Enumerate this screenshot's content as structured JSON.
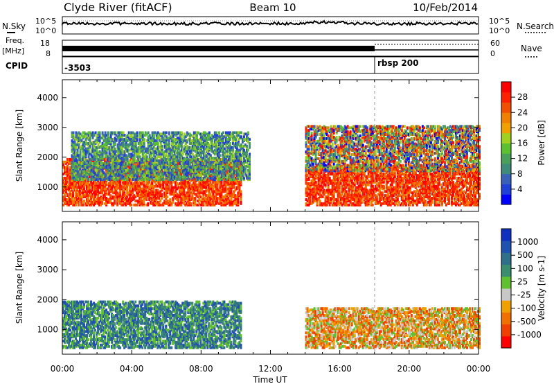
{
  "header": {
    "title_left": "Clyde River (fitACF)",
    "title_center": "Beam 10",
    "title_right": "10/Feb/2014"
  },
  "status_panels": {
    "nsky_label": "N.Sky",
    "nsearch_label": "N.Search",
    "freq_label_line1": "Freq.",
    "freq_label_line2": "[MHz]",
    "nave_label": "Nave",
    "cpid_label": "CPID",
    "noise_ticks": [
      "10^5",
      "10^0"
    ],
    "freq_ticks": [
      "18",
      "8"
    ],
    "nave_ticks": [
      "60",
      "0"
    ],
    "cpid_first": "-3503",
    "cpid_second": "rbsp 200"
  },
  "chart_data": [
    {
      "type": "heatmap",
      "title": "Power",
      "xlabel": "Time UT",
      "ylabel": "Slant Range [km]",
      "x_ticks": [
        "00:00",
        "04:00",
        "08:00",
        "12:00",
        "16:00",
        "20:00",
        "00:00"
      ],
      "y_ticks": [
        "1000",
        "2000",
        "3000",
        "4000"
      ],
      "xlim_hours": [
        0,
        24
      ],
      "ylim_km": [
        180,
        4600
      ],
      "colorbar": {
        "label": "Power [dB]",
        "ticks": [
          "4",
          "8",
          "12",
          "16",
          "20",
          "24",
          "28"
        ],
        "range": [
          0,
          32
        ],
        "colors": [
          "#0000ff",
          "#2040d8",
          "#3a60b8",
          "#3f8a78",
          "#4aa05a",
          "#5cc030",
          "#a0d020",
          "#f0a000",
          "#f08000",
          "#f05000",
          "#ff2000",
          "#ff0000"
        ]
      },
      "echo_regions": [
        {
          "t0": 0.0,
          "t1": 10.3,
          "r_lo": 350,
          "r_hi": 1900,
          "value": "high"
        },
        {
          "t0": 0.5,
          "t1": 10.8,
          "r_lo": 1200,
          "r_hi": 2800,
          "value": "low"
        },
        {
          "t0": 14.0,
          "t1": 24.0,
          "r_lo": 350,
          "r_hi": 1700,
          "value": "high"
        },
        {
          "t0": 14.0,
          "t1": 24.0,
          "r_lo": 1500,
          "r_hi": 3000,
          "value": "mixed"
        }
      ]
    },
    {
      "type": "heatmap",
      "title": "Velocity",
      "xlabel": "Time UT",
      "ylabel": "Slant Range [km]",
      "x_ticks": [
        "00:00",
        "04:00",
        "08:00",
        "12:00",
        "16:00",
        "20:00",
        "00:00"
      ],
      "y_ticks": [
        "1000",
        "2000",
        "3000",
        "4000"
      ],
      "xlim_hours": [
        0,
        24
      ],
      "ylim_km": [
        180,
        4600
      ],
      "colorbar": {
        "label": "Velocity [m s-1]",
        "ticks": [
          "1000",
          "500",
          "100",
          "25",
          "-25",
          "-100",
          "-500",
          "-1000"
        ],
        "colors": [
          "#1030c0",
          "#2050b0",
          "#2f6f8a",
          "#3c8c70",
          "#60c030",
          "#c8c8c8",
          "#f0a000",
          "#f07000",
          "#f04000",
          "#ff0000"
        ]
      },
      "echo_regions": [
        {
          "t0": 0.0,
          "t1": 10.3,
          "r_lo": 350,
          "r_hi": 1900,
          "value": "positive"
        },
        {
          "t0": 14.0,
          "t1": 24.0,
          "r_lo": 350,
          "r_hi": 1700,
          "value": "negative"
        }
      ]
    }
  ]
}
